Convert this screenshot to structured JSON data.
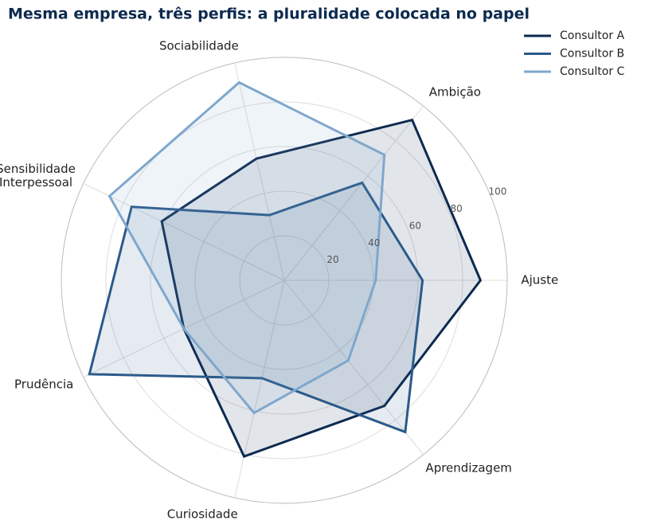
{
  "chart_data": {
    "type": "radar",
    "title": "Mesma empresa, três perfis: a pluralidade colocada no papel",
    "categories": [
      "Ajuste",
      "Ambição",
      "Sociabilidade",
      "Sensibilidade\nInterpessoal",
      "Prudência",
      "Curiosidade",
      "Aprendizagem"
    ],
    "series": [
      {
        "name": "Consultor A",
        "color": "#0d2a4f",
        "values": [
          88,
          92,
          56,
          61,
          50,
          81,
          72
        ]
      },
      {
        "name": "Consultor B",
        "color": "#2b5a8a",
        "values": [
          62,
          56,
          30,
          76,
          97,
          45,
          87
        ]
      },
      {
        "name": "Consultor C",
        "color": "#7fa7cc",
        "values": [
          41,
          72,
          91,
          87,
          50,
          61,
          46
        ]
      }
    ],
    "ylim": [
      0,
      100
    ],
    "yticks": [
      20,
      40,
      60,
      80,
      100
    ],
    "grid": true,
    "legend": "upper right"
  }
}
